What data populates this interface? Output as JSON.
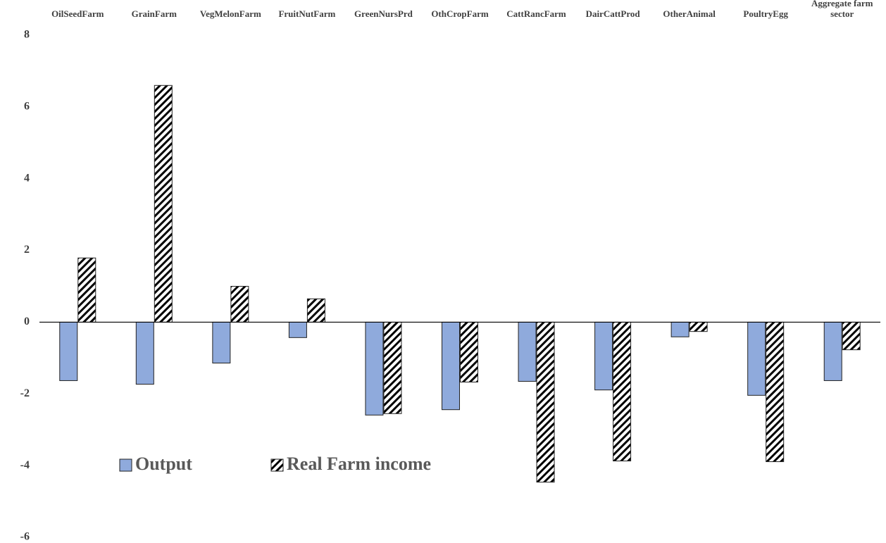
{
  "chart_data": {
    "type": "bar",
    "categories": [
      "OilSeedFarm",
      "GrainFarm",
      "VegMelonFarm",
      "FruitNutFarm",
      "GreenNursPrd",
      "OthCropFarm",
      "CattRancFarm",
      "DairCattProd",
      "OtherAnimal",
      "PoultryEgg",
      "Aggregate farm sector"
    ],
    "series": [
      {
        "name": "Output",
        "color": "#8faadc",
        "values": [
          -1.63,
          -1.73,
          -1.14,
          -0.43,
          -2.59,
          -2.44,
          -1.65,
          -1.89,
          -0.41,
          -2.04,
          -1.63
        ]
      },
      {
        "name": "Real Farm income",
        "color": "hatch",
        "values": [
          1.79,
          6.6,
          1.0,
          0.65,
          -2.55,
          -1.67,
          -4.46,
          -3.87,
          -0.26,
          -3.89,
          -0.77
        ]
      }
    ],
    "ylim": [
      -6,
      8
    ],
    "yticks": [
      -6,
      -4,
      -2,
      0,
      2,
      4,
      6,
      8
    ],
    "grid": false,
    "legend": "lower left"
  }
}
